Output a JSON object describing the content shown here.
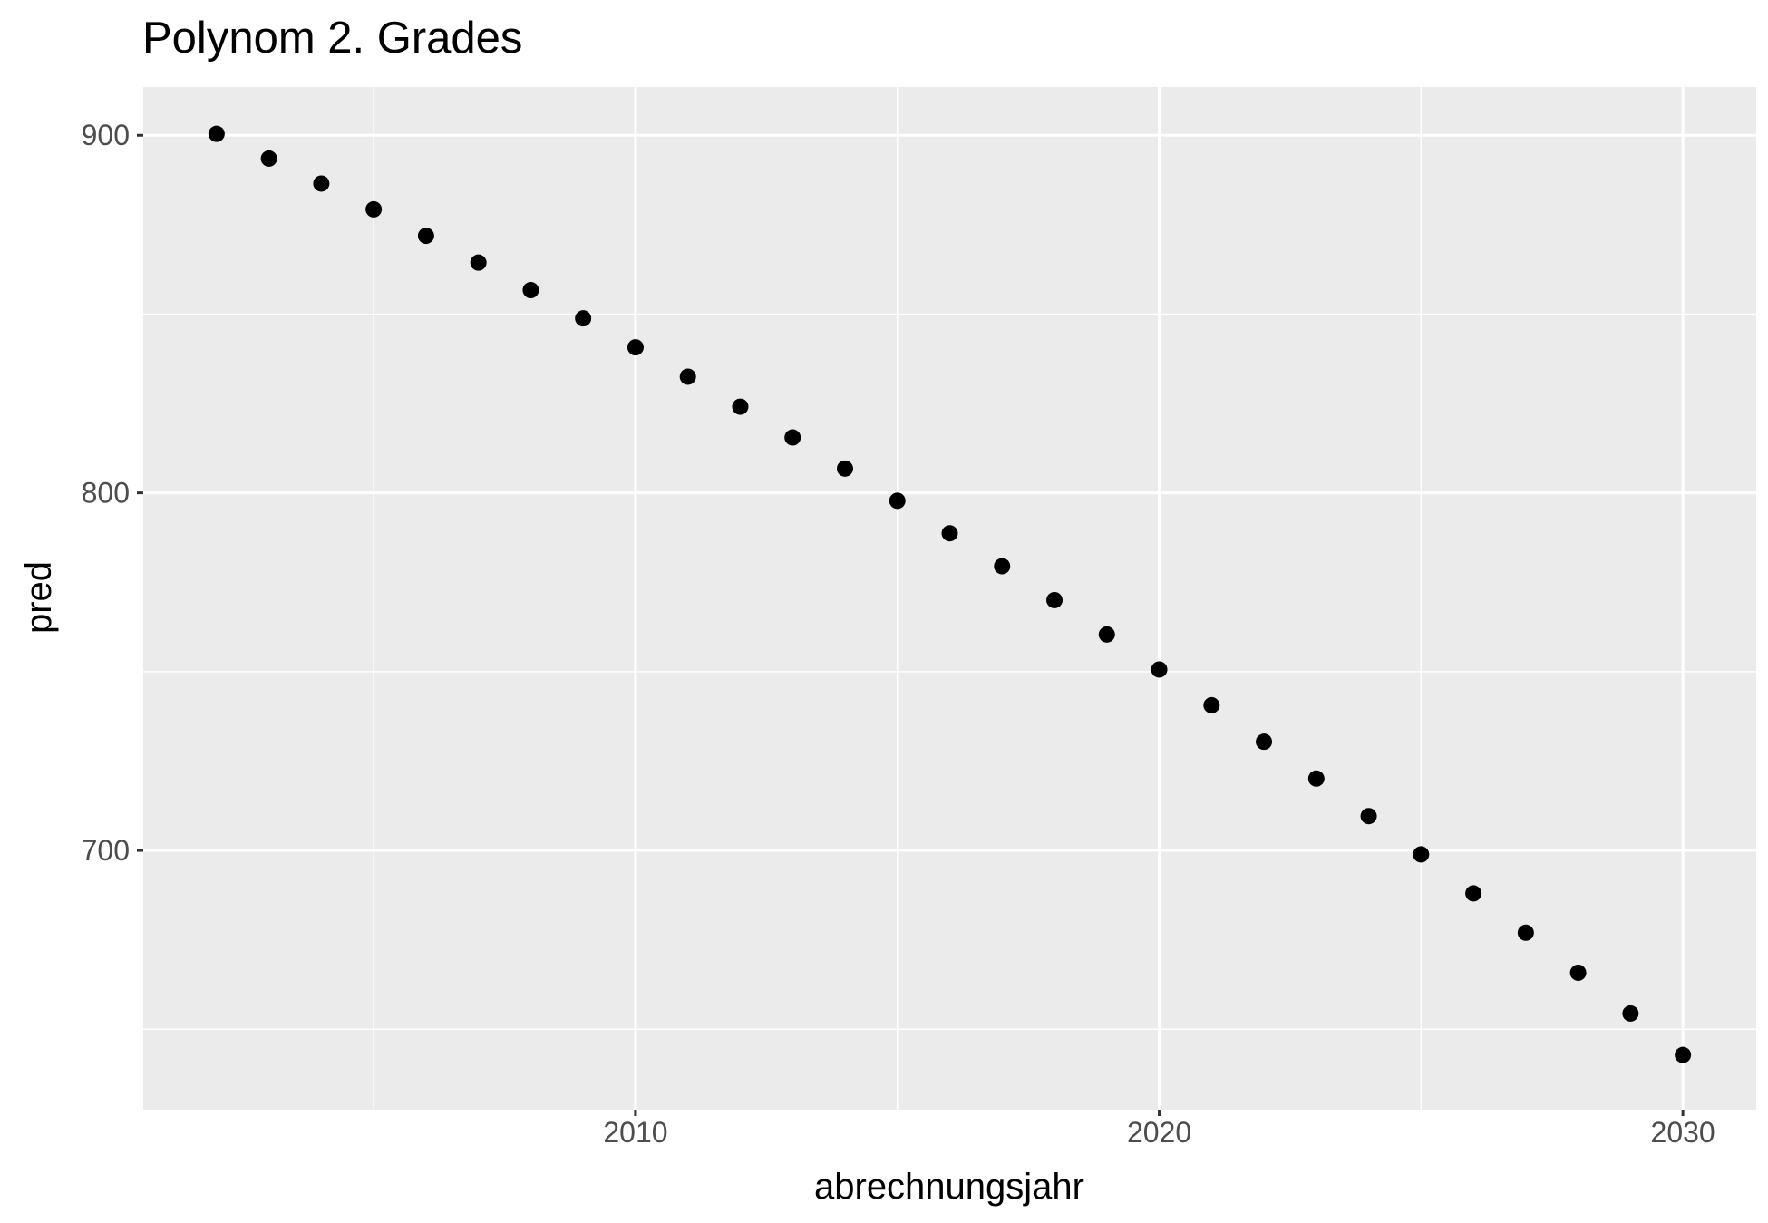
{
  "chart_data": {
    "type": "scatter",
    "title": "Polynom 2. Grades",
    "xlabel": "abrechnungsjahr",
    "ylabel": "pred",
    "xlim": [
      2000.6,
      2031.4
    ],
    "ylim": [
      627.5,
      913.5
    ],
    "x_ticks": [
      2010,
      2020,
      2030
    ],
    "x_tick_labels": [
      "2010",
      "2020",
      "2030"
    ],
    "x_minor_ticks": [
      2005,
      2015,
      2025
    ],
    "y_ticks": [
      700,
      800,
      900
    ],
    "y_tick_labels": [
      "700",
      "800",
      "900"
    ],
    "y_minor_ticks": [
      650,
      750,
      850
    ],
    "grid": true,
    "legend": "none",
    "colors": {
      "panel_background": "#ebebeb",
      "grid_line": "#ffffff",
      "point": "#000000",
      "tick_text": "#4d4d4d"
    },
    "x": [
      2002,
      2003,
      2004,
      2005,
      2006,
      2007,
      2008,
      2009,
      2010,
      2011,
      2012,
      2013,
      2014,
      2015,
      2016,
      2017,
      2018,
      2019,
      2020,
      2021,
      2022,
      2023,
      2024,
      2025,
      2026,
      2027,
      2028,
      2029,
      2030
    ],
    "y": [
      900.4,
      893.5,
      886.5,
      879.3,
      871.9,
      864.4,
      856.7,
      848.8,
      840.7,
      832.5,
      824.1,
      815.5,
      806.8,
      797.8,
      788.7,
      779.5,
      770.0,
      760.4,
      750.6,
      740.6,
      730.4,
      720.1,
      709.6,
      698.9,
      688.0,
      677.0,
      665.8,
      654.4,
      642.8
    ]
  }
}
